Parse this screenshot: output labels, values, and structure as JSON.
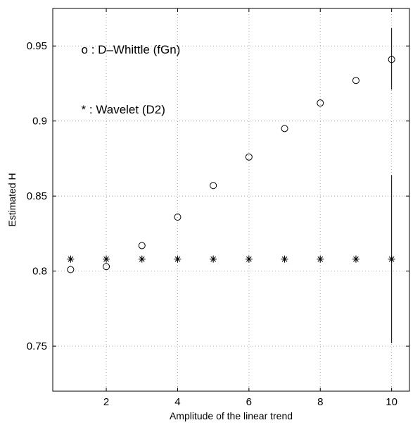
{
  "chart_data": {
    "type": "scatter",
    "title": "",
    "xlabel": "Amplitude of the linear trend",
    "ylabel": "Estimated H",
    "xlim": [
      0.5,
      10.5
    ],
    "ylim": [
      0.72,
      0.975
    ],
    "xticks": [
      2,
      4,
      6,
      8,
      10
    ],
    "yticks": [
      0.75,
      0.8,
      0.85,
      0.9,
      0.95
    ],
    "xtick_labels": [
      "2",
      "4",
      "6",
      "8",
      "10"
    ],
    "ytick_labels": [
      "0.75",
      "0.8",
      "0.85",
      "0.9",
      "0.95"
    ],
    "grid": true,
    "grid_style": "dotted",
    "legend": "none",
    "series": [
      {
        "marker": "circle",
        "x": [
          1,
          2,
          3,
          4,
          5,
          6,
          7,
          8,
          9,
          10
        ],
        "y": [
          0.801,
          0.803,
          0.817,
          0.836,
          0.857,
          0.876,
          0.895,
          0.912,
          0.927,
          0.941
        ]
      },
      {
        "marker": "asterisk",
        "x": [
          1,
          2,
          3,
          4,
          5,
          6,
          7,
          8,
          9,
          10
        ],
        "y": [
          0.808,
          0.808,
          0.808,
          0.808,
          0.808,
          0.808,
          0.808,
          0.808,
          0.808,
          0.808
        ]
      }
    ],
    "error_bars": [
      {
        "x": 10,
        "low": 0.921,
        "high": 0.962
      },
      {
        "x": 10,
        "low": 0.752,
        "high": 0.864
      }
    ],
    "annotations": [
      {
        "text": "o : D–Whittle (fGn)",
        "x": 1.3,
        "y": 0.945
      },
      {
        "text": "*  : Wavelet (D2)",
        "x": 1.3,
        "y": 0.905
      }
    ]
  }
}
